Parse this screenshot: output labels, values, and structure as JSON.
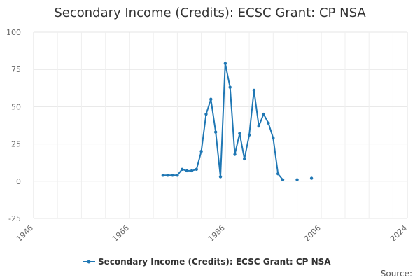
{
  "chart_data": {
    "type": "line",
    "title": "Secondary Income (Credits): ECSC Grant: CP NSA",
    "xlabel": "",
    "ylabel": "",
    "xlim": [
      1946,
      2024
    ],
    "ylim": [
      -25,
      100
    ],
    "x_ticks": [
      1946,
      1966,
      1986,
      2006,
      2024
    ],
    "y_ticks": [
      -25,
      0,
      25,
      50,
      75,
      100
    ],
    "grid": true,
    "legend_position": "bottom",
    "series": [
      {
        "name": "Secondary Income (Credits): ECSC Grant: CP NSA",
        "color": "#1f77b4",
        "points": [
          [
            1973,
            4
          ],
          [
            1974,
            4
          ],
          [
            1975,
            4
          ],
          [
            1976,
            4
          ],
          [
            1977,
            8
          ],
          [
            1978,
            7
          ],
          [
            1979,
            7
          ],
          [
            1980,
            8
          ],
          [
            1981,
            20
          ],
          [
            1982,
            45
          ],
          [
            1983,
            55
          ],
          [
            1984,
            33
          ],
          [
            1985,
            3
          ],
          [
            1986,
            79
          ],
          [
            1987,
            63
          ],
          [
            1988,
            18
          ],
          [
            1989,
            32
          ],
          [
            1990,
            15
          ],
          [
            1991,
            31
          ],
          [
            1992,
            61
          ],
          [
            1993,
            37
          ],
          [
            1994,
            45
          ],
          [
            1995,
            39
          ],
          [
            1996,
            29
          ],
          [
            1997,
            5
          ],
          [
            1998,
            1
          ],
          [
            null,
            null
          ],
          [
            2001,
            1
          ],
          [
            null,
            null
          ],
          [
            2004,
            2
          ]
        ]
      }
    ]
  },
  "source_label": "Source:"
}
